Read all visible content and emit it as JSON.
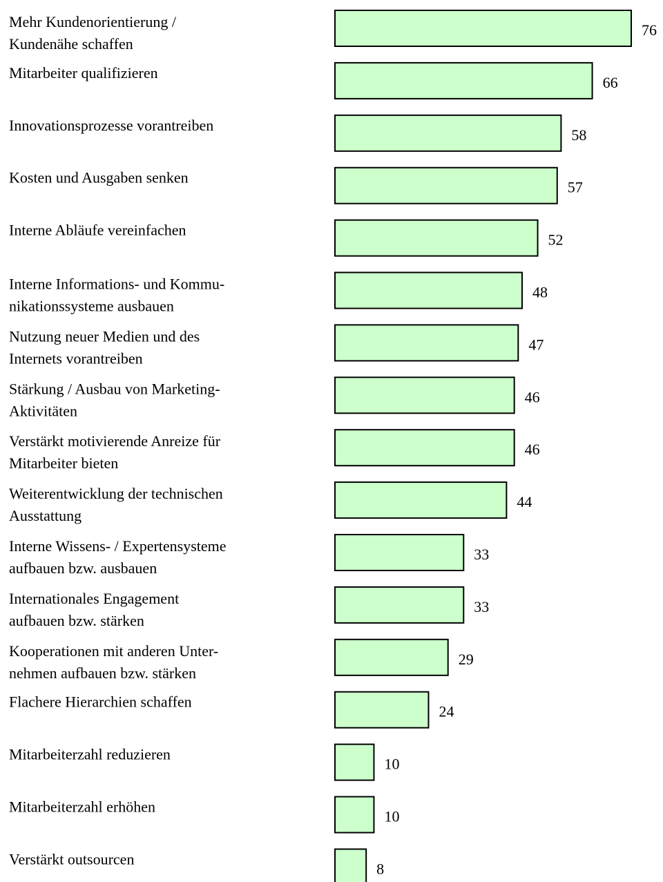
{
  "chart_data": {
    "type": "bar",
    "orientation": "horizontal",
    "color": "#ccffcc",
    "categories": [
      [
        "Mehr Kundenorientierung /",
        "Kundenähe schaffen"
      ],
      [
        "Mitarbeiter qualifizieren"
      ],
      [
        "Innovationsprozesse vorantreiben"
      ],
      [
        "Kosten und Ausgaben senken"
      ],
      [
        "Interne Abläufe vereinfachen"
      ],
      [
        "Interne Informations- und Kommu-",
        "nikationssysteme ausbauen"
      ],
      [
        "Nutzung neuer Medien und des",
        "Internets vorantreiben"
      ],
      [
        "Stärkung / Ausbau von Marketing-",
        "Aktivitäten"
      ],
      [
        "Verstärkt motivierende Anreize für",
        "Mitarbeiter bieten"
      ],
      [
        "Weiterentwicklung der technischen",
        "Ausstattung"
      ],
      [
        "Interne Wissens- / Expertensysteme",
        "aufbauen bzw. ausbauen"
      ],
      [
        "Internationales Engagement",
        "aufbauen bzw. stärken"
      ],
      [
        "Kooperationen mit anderen Unter-",
        "nehmen aufbauen bzw. stärken"
      ],
      [
        "Flachere Hierarchien schaffen"
      ],
      [
        "Mitarbeiterzahl reduzieren"
      ],
      [
        "Mitarbeiterzahl erhöhen"
      ],
      [
        "Verstärkt outsourcen"
      ]
    ],
    "values": [
      76,
      66,
      58,
      57,
      52,
      48,
      47,
      46,
      46,
      44,
      33,
      33,
      29,
      24,
      10,
      10,
      8
    ]
  }
}
